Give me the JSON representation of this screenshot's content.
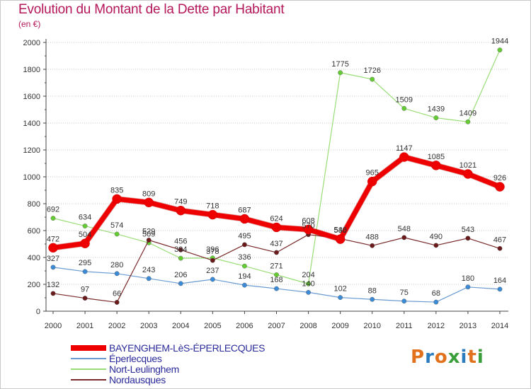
{
  "header": {
    "title": "Evolution du Montant de la Dette par Habitant",
    "subtitle": "(en €)"
  },
  "logo": {
    "text": "Proxiti",
    "colors": [
      "#e2711d",
      "#2b7bbf",
      "#e2711d",
      "#3a9e3a",
      "#2b7bbf",
      "#e2711d",
      "#3a9e3a"
    ]
  },
  "chart_data": {
    "type": "line",
    "title": "Evolution du Montant de la Dette par Habitant",
    "subtitle": "(en €)",
    "xlabel": "",
    "ylabel": "",
    "x": [
      "2000",
      "2001",
      "2002",
      "2003",
      "2004",
      "2005",
      "2006",
      "2007",
      "2008",
      "2009",
      "2010",
      "2011",
      "2012",
      "2013",
      "2014"
    ],
    "ylim": [
      0,
      2000
    ],
    "yticks": [
      "0",
      "200",
      "400",
      "600",
      "800",
      "1000",
      "1200",
      "1400",
      "1600",
      "1800",
      "2000"
    ],
    "grid": "horizontal dotted",
    "legend_position": "bottom-left",
    "series": [
      {
        "name": "BAYENGHEM-LèS-ÉPERLECQUES",
        "color": "#ee0000",
        "marker": "#ee0000",
        "width": 7,
        "values": [
          472,
          504,
          835,
          809,
          749,
          718,
          687,
          624,
          608,
          536,
          965,
          1147,
          1085,
          1021,
          926
        ],
        "labels": [
          "472",
          "504",
          "835",
          "809",
          "749",
          "718",
          "687",
          "624",
          "608",
          "536",
          "965",
          "1147",
          "1085",
          "1021",
          "926"
        ]
      },
      {
        "name": "Éperlecques",
        "color": "#6a9bd0",
        "marker": "#3b8bd6",
        "width": 1.2,
        "values": [
          327,
          295,
          280,
          243,
          206,
          237,
          194,
          168,
          140,
          102,
          88,
          75,
          68,
          180,
          164
        ],
        "labels": [
          "327",
          "295",
          "280",
          "243",
          "206",
          "237",
          "194",
          "168",
          "140",
          "102",
          "88",
          "75",
          "68",
          "180",
          "164"
        ]
      },
      {
        "name": "Nort-Leulinghem",
        "color": "#99dd77",
        "marker": "#66cc33",
        "width": 1.2,
        "values": [
          692,
          634,
          574,
          509,
          394,
          396,
          336,
          271,
          204,
          1775,
          1726,
          1509,
          1439,
          1409,
          1944
        ],
        "labels": [
          "692",
          "634",
          "574",
          "509",
          "394",
          "396",
          "336",
          "271",
          "204",
          "1775",
          "1726",
          "1509",
          "1439",
          "1409",
          "1944"
        ]
      },
      {
        "name": "Nordausques",
        "color": "#7a2a2a",
        "marker": "#6a1a1a",
        "width": 1.2,
        "values": [
          132,
          97,
          66,
          529,
          456,
          378,
          495,
          437,
          570,
          540,
          488,
          548,
          490,
          543,
          467
        ],
        "labels": [
          "132",
          "97",
          "66",
          "529",
          "456",
          "378",
          "495",
          "437",
          "570",
          "540",
          "488",
          "548",
          "490",
          "543",
          "467"
        ]
      }
    ]
  }
}
